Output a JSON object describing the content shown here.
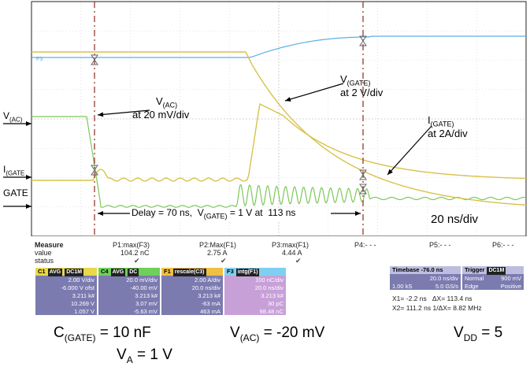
{
  "annotations": {
    "vac_label": "V(AC)",
    "vac_scale": "at 20 mV/div",
    "vgate_label": "V(GATE)",
    "vgate_scale": "at 2 V/div",
    "igate_label": "I(GATE)",
    "igate_scale": "at 2A/div",
    "delay_text": "Delay = 70 ns,  V(GATE) = 1 V at  113 ns",
    "timebase_text": "20 ns/div"
  },
  "left_labels": {
    "vac": "V(AC)",
    "igate": "I(GATE",
    "gate": "GATE",
    "f3": "F3"
  },
  "measure": {
    "title": "Measure",
    "row_value": "value",
    "row_status": "status",
    "params": [
      {
        "name": "P1:max(F3)",
        "value": "104.2 nC",
        "status": "✔"
      },
      {
        "name": "P2:Max(F1)",
        "value": "2.75 A",
        "status": "✔"
      },
      {
        "name": "P3:max(F1)",
        "value": "4.44 A",
        "status": "✔"
      },
      {
        "name": "P4:- - -",
        "value": "",
        "status": ""
      },
      {
        "name": "P5:- - -",
        "value": "",
        "status": ""
      },
      {
        "name": "P6:- - -",
        "value": "",
        "status": ""
      }
    ]
  },
  "channels": [
    {
      "name": "C1",
      "tags": [
        "AVG",
        "DC1M"
      ],
      "lines": [
        "2.00 V/div",
        "-6.000 V ofst",
        "3.211 k#",
        "10.269 V",
        "1.057 V"
      ],
      "header_color": "#e8d84a",
      "body_color": "#7b7bb0"
    },
    {
      "name": "C4",
      "tags": [
        "AVG",
        "DC"
      ],
      "lines": [
        "20.0 mV/div",
        "-40.00 mV",
        "3.213 k#",
        "3.07 mV",
        "-5.63 mV"
      ],
      "header_color": "#6fcf5a",
      "body_color": "#7b7bb0"
    },
    {
      "name": "F1",
      "tags": [
        "rescale(C3)"
      ],
      "lines": [
        "2.00 A/div",
        "20.0 ns/div",
        "3.213 k#",
        "-63 mA",
        "463 mA"
      ],
      "header_color": "#f0c040",
      "body_color": "#7b7bb0"
    },
    {
      "name": "F3",
      "tags": [
        "intg(F1)"
      ],
      "lines": [
        "100 nC/div",
        "20.0 ns/div",
        "3.213 k#",
        "30 pC",
        "98.48 nC"
      ],
      "header_color": "#7fd0f0",
      "body_color": "#c8a0d8"
    }
  ],
  "timebase": {
    "label": "Timebase",
    "delay": "-76.0 ns",
    "per_div": "20.0 ns/div",
    "samples": "1.00 kS",
    "rate": "5.0 GS/s"
  },
  "trigger": {
    "label": "Trigger",
    "tag": "DC1M",
    "mode": "Normal",
    "level": "900 mV",
    "type": "Edge",
    "slope": "Positive"
  },
  "cursors": {
    "x1": "X1=",
    "x1_val": "-2.2 ns",
    "dx_label": "ΔX=",
    "dx_val": "113.4 ns",
    "x2": "X2=",
    "x2_val": "111.2 ns",
    "inv_label": "1/ΔX=",
    "inv_val": "8.82 MHz"
  },
  "bottom": {
    "cgate": "C(GATE) = 10 nF",
    "vac": "V(AC) = -20 mV",
    "vdd": "VDD = 5",
    "va": "VA = 1 V"
  },
  "colors": {
    "trace_yellow": "#d8c24a",
    "trace_green": "#7cc85a",
    "trace_cyan": "#5ab0e8",
    "cursor": "#8b2a20",
    "grid": "#cfcfcf"
  },
  "chart_data": {
    "type": "line",
    "series": [
      {
        "name": "V(GATE)",
        "color": "#d8c24a"
      },
      {
        "name": "I(GATE)",
        "color": "#d8c24a"
      },
      {
        "name": "V(AC)",
        "color": "#7cc85a"
      },
      {
        "name": "F3",
        "color": "#5ab0e8"
      }
    ],
    "grid": true
  }
}
